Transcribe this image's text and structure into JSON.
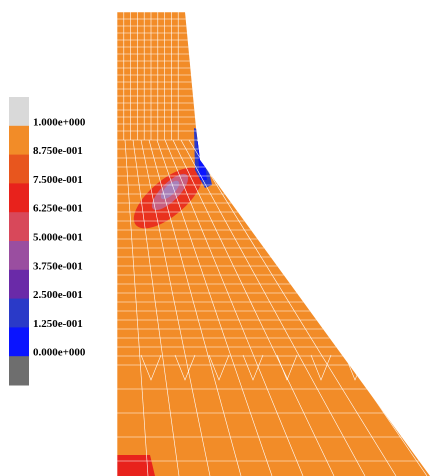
{
  "legend": {
    "labels": [
      "1.000e+000",
      "8.750e-001",
      "7.500e-001",
      "6.250e-001",
      "5.000e-001",
      "3.750e-001",
      "2.500e-001",
      "1.250e-001",
      "0.000e+000"
    ],
    "colors": [
      "#d9d9d9",
      "#f28c28",
      "#e8561e",
      "#e8221c",
      "#d8485a",
      "#9a4ea0",
      "#6a2aa8",
      "#2a3ac8",
      "#0a14ff",
      "#6e6e6e"
    ]
  }
}
